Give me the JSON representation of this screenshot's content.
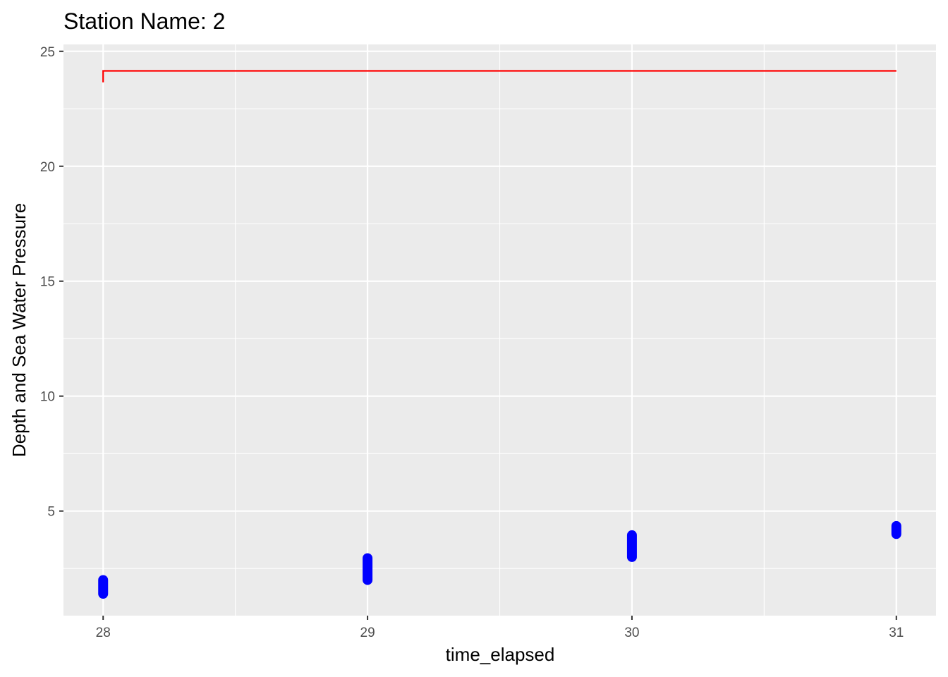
{
  "chart_data": {
    "type": "line",
    "title": "Station Name: 2",
    "xlabel": "time_elapsed",
    "ylabel": "Depth and Sea Water Pressure",
    "xlim": [
      27.85,
      31.15
    ],
    "ylim": [
      0.45,
      25.3
    ],
    "x_ticks": [
      28,
      29,
      30,
      31
    ],
    "x_minor_ticks": [
      28.5,
      29.5,
      30.5
    ],
    "y_ticks": [
      5,
      10,
      15,
      20,
      25
    ],
    "y_minor_ticks": [
      2.5,
      7.5,
      12.5,
      17.5,
      22.5
    ],
    "grid": true,
    "legend": "none",
    "series": [
      {
        "kind": "line",
        "color": "#ff0000",
        "x": [
          28,
          28,
          29,
          30,
          31
        ],
        "y": [
          23.65,
          24.15,
          24.15,
          24.15,
          24.15
        ]
      },
      {
        "kind": "scatter",
        "color": "#0000ff",
        "segments": [
          {
            "x": 28,
            "y_min": 1.4,
            "y_max": 2.0
          },
          {
            "x": 29,
            "y_min": 2.0,
            "y_max": 2.95
          },
          {
            "x": 30,
            "y_min": 3.0,
            "y_max": 3.95
          },
          {
            "x": 31,
            "y_min": 4.0,
            "y_max": 4.35
          }
        ]
      }
    ],
    "colors": {
      "panel_background": "#ebebeb",
      "grid": "#ffffff",
      "tick_label": "#4d4d4d"
    }
  }
}
